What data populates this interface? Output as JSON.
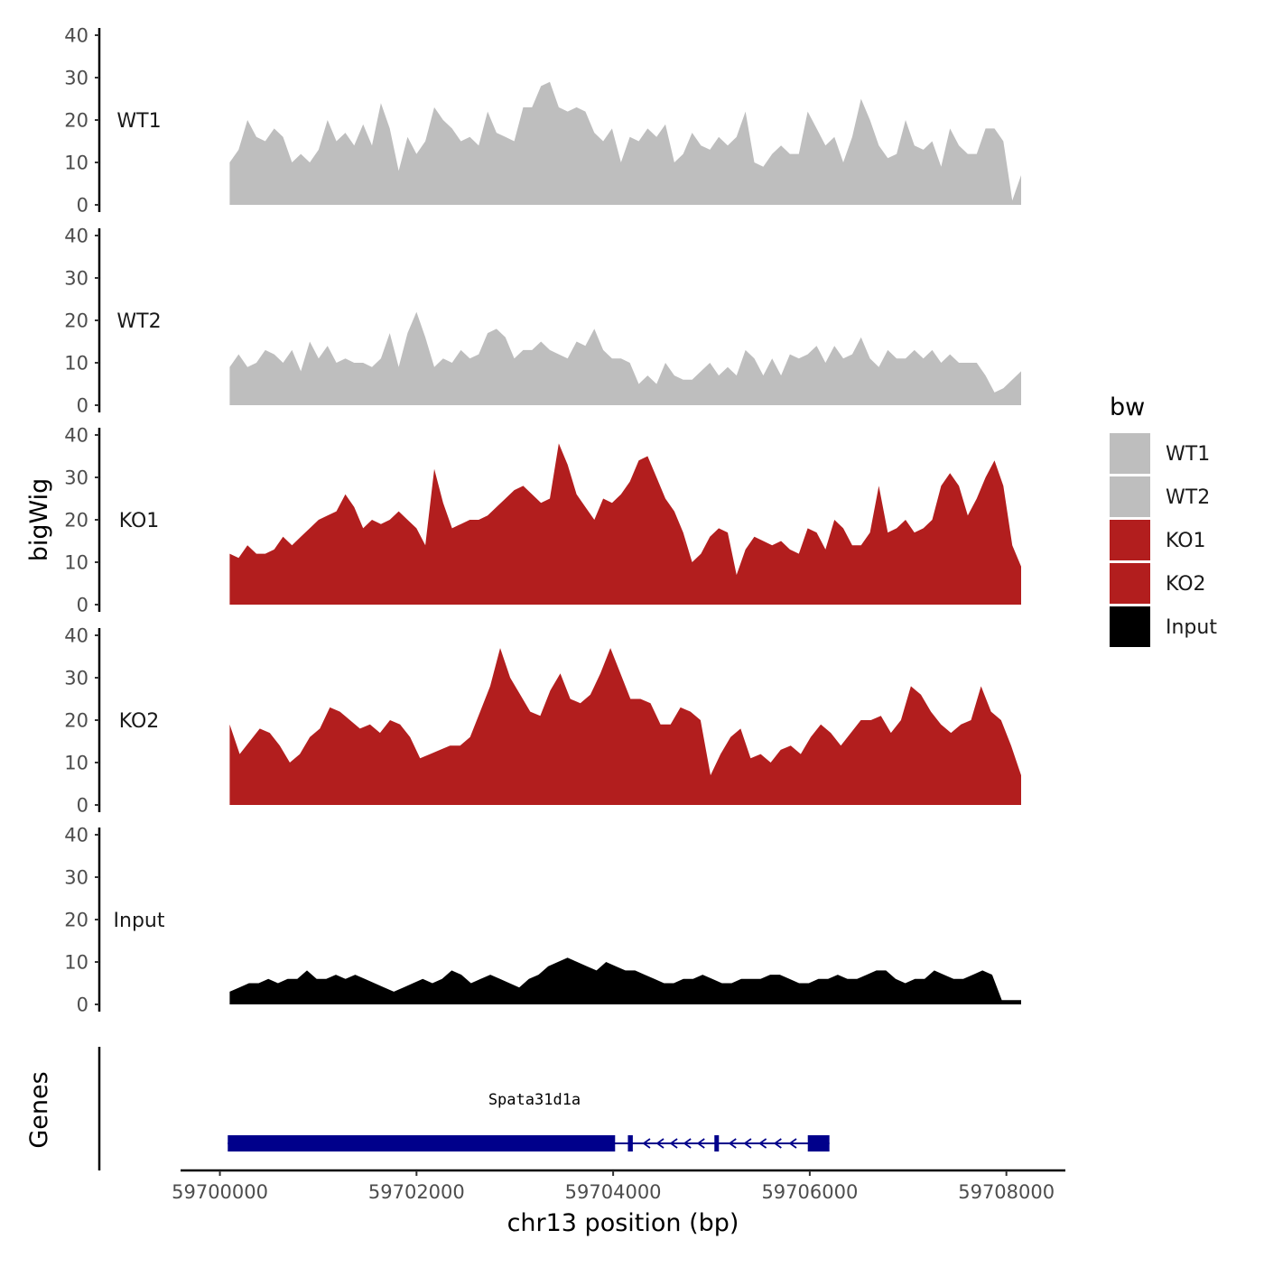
{
  "chart_data": {
    "type": "area",
    "title": "",
    "ylabel": "bigWig",
    "xlabel": "chr13 position (bp)",
    "ylim": [
      0,
      40
    ],
    "y_ticks": [
      0,
      10,
      20,
      30,
      40
    ],
    "y_tick_labels": [
      "0",
      "10",
      "20",
      "30",
      "40"
    ],
    "xlim": [
      59699600,
      59708600
    ],
    "x_ticks": [
      59700000,
      59702000,
      59704000,
      59706000,
      59708000
    ],
    "x_tick_labels": [
      "59700000",
      "59702000",
      "59704000",
      "59706000",
      "59708000"
    ],
    "x_start": 59700100,
    "x_end": 59708150,
    "tracks": [
      {
        "name": "WT1",
        "color": "#BEBEBE",
        "values": [
          10,
          13,
          20,
          16,
          15,
          18,
          16,
          10,
          12,
          10,
          13,
          20,
          15,
          17,
          14,
          19,
          14,
          24,
          18,
          8,
          16,
          12,
          15,
          23,
          20,
          18,
          15,
          16,
          14,
          22,
          17,
          16,
          15,
          23,
          23,
          28,
          29,
          23,
          22,
          23,
          22,
          17,
          15,
          18,
          10,
          16,
          15,
          18,
          16,
          19,
          10,
          12,
          17,
          14,
          13,
          16,
          14,
          16,
          22,
          10,
          9,
          12,
          14,
          12,
          12,
          22,
          18,
          14,
          16,
          10,
          16,
          25,
          20,
          14,
          11,
          12,
          20,
          14,
          13,
          15,
          9,
          18,
          14,
          12,
          12,
          18,
          18,
          15,
          1,
          7
        ]
      },
      {
        "name": "WT2",
        "color": "#BEBEBE",
        "values": [
          9,
          12,
          9,
          10,
          13,
          12,
          10,
          13,
          8,
          15,
          11,
          14,
          10,
          11,
          10,
          10,
          9,
          11,
          17,
          9,
          17,
          22,
          16,
          9,
          11,
          10,
          13,
          11,
          12,
          17,
          18,
          16,
          11,
          13,
          13,
          15,
          13,
          12,
          11,
          15,
          14,
          18,
          13,
          11,
          11,
          10,
          5,
          7,
          5,
          10,
          7,
          6,
          6,
          8,
          10,
          7,
          9,
          7,
          13,
          11,
          7,
          11,
          7,
          12,
          11,
          12,
          14,
          10,
          14,
          11,
          12,
          16,
          11,
          9,
          13,
          11,
          11,
          13,
          11,
          13,
          10,
          12,
          10,
          10,
          10,
          7,
          3,
          4,
          6,
          8
        ]
      },
      {
        "name": "KO1",
        "color": "#B21E1E",
        "values": [
          12,
          11,
          14,
          12,
          12,
          13,
          16,
          14,
          16,
          18,
          20,
          21,
          22,
          26,
          23,
          18,
          20,
          19,
          20,
          22,
          20,
          18,
          14,
          32,
          24,
          18,
          19,
          20,
          20,
          21,
          23,
          25,
          27,
          28,
          26,
          24,
          25,
          38,
          33,
          26,
          23,
          20,
          25,
          24,
          26,
          29,
          34,
          35,
          30,
          25,
          22,
          17,
          10,
          12,
          16,
          18,
          17,
          7,
          13,
          16,
          15,
          14,
          15,
          13,
          12,
          18,
          17,
          13,
          20,
          18,
          14,
          14,
          17,
          28,
          17,
          18,
          20,
          17,
          18,
          20,
          28,
          31,
          28,
          21,
          25,
          30,
          34,
          28,
          14,
          9
        ]
      },
      {
        "name": "KO2",
        "color": "#B21E1E",
        "values": [
          19,
          12,
          15,
          18,
          17,
          14,
          10,
          12,
          16,
          18,
          23,
          22,
          20,
          18,
          19,
          17,
          20,
          19,
          16,
          11,
          12,
          13,
          14,
          14,
          16,
          22,
          28,
          37,
          30,
          26,
          22,
          21,
          27,
          31,
          25,
          24,
          26,
          31,
          37,
          31,
          25,
          25,
          24,
          19,
          19,
          23,
          22,
          20,
          7,
          12,
          16,
          18,
          11,
          12,
          10,
          13,
          14,
          12,
          16,
          19,
          17,
          14,
          17,
          20,
          20,
          21,
          17,
          20,
          28,
          26,
          22,
          19,
          17,
          19,
          20,
          28,
          22,
          20,
          14,
          7
        ]
      },
      {
        "name": "Input",
        "color": "#000000",
        "values": [
          3,
          4,
          5,
          5,
          6,
          5,
          6,
          6,
          8,
          6,
          6,
          7,
          6,
          7,
          6,
          5,
          4,
          3,
          4,
          5,
          6,
          5,
          6,
          8,
          7,
          5,
          6,
          7,
          6,
          5,
          4,
          6,
          7,
          9,
          10,
          11,
          10,
          9,
          8,
          10,
          9,
          8,
          8,
          7,
          6,
          5,
          5,
          6,
          6,
          7,
          6,
          5,
          5,
          6,
          6,
          6,
          7,
          7,
          6,
          5,
          5,
          6,
          6,
          7,
          6,
          6,
          7,
          8,
          8,
          6,
          5,
          6,
          6,
          8,
          7,
          6,
          6,
          7,
          8,
          7,
          1,
          1,
          1
        ]
      }
    ],
    "legend": {
      "title": "bw",
      "position": "right",
      "entries": [
        {
          "label": "WT1",
          "color": "#BEBEBE"
        },
        {
          "label": "WT2",
          "color": "#BEBEBE"
        },
        {
          "label": "KO1",
          "color": "#B21E1E"
        },
        {
          "label": "KO2",
          "color": "#B21E1E"
        },
        {
          "label": "Input",
          "color": "#000000"
        }
      ]
    },
    "genes_panel": {
      "ylabel": "Genes",
      "color": "#00008B",
      "gene": {
        "name": "Spata31d1a",
        "strand": "-",
        "start": 59700080,
        "end": 59706200,
        "exons": [
          [
            59700080,
            59704020
          ],
          [
            59704150,
            59704200
          ],
          [
            59705030,
            59705060
          ],
          [
            59705980,
            59706200
          ]
        ]
      }
    }
  }
}
